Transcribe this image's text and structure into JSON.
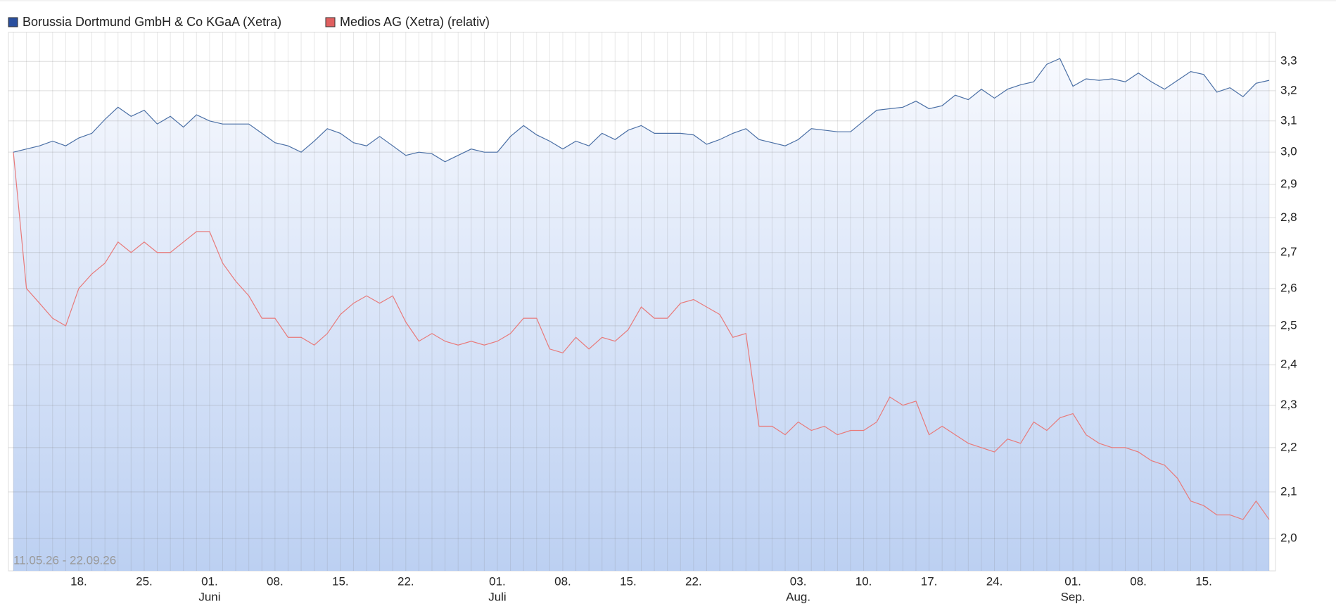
{
  "chart_data": {
    "type": "line",
    "log_scale": true,
    "grid": true,
    "date_range": "11.05.26 - 22.09.26",
    "x": [
      "2026-05-11",
      "2026-05-12",
      "2026-05-13",
      "2026-05-14",
      "2026-05-15",
      "2026-05-18",
      "2026-05-19",
      "2026-05-20",
      "2026-05-21",
      "2026-05-22",
      "2026-05-25",
      "2026-05-26",
      "2026-05-27",
      "2026-05-28",
      "2026-05-29",
      "2026-06-01",
      "2026-06-02",
      "2026-06-03",
      "2026-06-04",
      "2026-06-05",
      "2026-06-08",
      "2026-06-09",
      "2026-06-10",
      "2026-06-11",
      "2026-06-12",
      "2026-06-15",
      "2026-06-16",
      "2026-06-17",
      "2026-06-18",
      "2026-06-19",
      "2026-06-22",
      "2026-06-23",
      "2026-06-24",
      "2026-06-25",
      "2026-06-26",
      "2026-06-29",
      "2026-06-30",
      "2026-07-01",
      "2026-07-02",
      "2026-07-03",
      "2026-07-06",
      "2026-07-07",
      "2026-07-08",
      "2026-07-09",
      "2026-07-10",
      "2026-07-13",
      "2026-07-14",
      "2026-07-15",
      "2026-07-16",
      "2026-07-17",
      "2026-07-20",
      "2026-07-21",
      "2026-07-22",
      "2026-07-23",
      "2026-07-24",
      "2026-07-27",
      "2026-07-28",
      "2026-07-29",
      "2026-07-30",
      "2026-07-31",
      "2026-08-03",
      "2026-08-04",
      "2026-08-05",
      "2026-08-06",
      "2026-08-07",
      "2026-08-10",
      "2026-08-11",
      "2026-08-12",
      "2026-08-13",
      "2026-08-14",
      "2026-08-17",
      "2026-08-18",
      "2026-08-19",
      "2026-08-20",
      "2026-08-21",
      "2026-08-24",
      "2026-08-25",
      "2026-08-26",
      "2026-08-27",
      "2026-08-28",
      "2026-08-31",
      "2026-09-01",
      "2026-09-02",
      "2026-09-03",
      "2026-09-04",
      "2026-09-07",
      "2026-09-08",
      "2026-09-09",
      "2026-09-10",
      "2026-09-11",
      "2026-09-14",
      "2026-09-15",
      "2026-09-16",
      "2026-09-17",
      "2026-09-18",
      "2026-09-21",
      "2026-09-22"
    ],
    "series": [
      {
        "name": "Borussia Dortmund GmbH & Co KGaA (Xetra)",
        "color": "#4a6fa5",
        "legend_color": "#2a4f9e",
        "values": [
          3.0,
          3.01,
          3.02,
          3.035,
          3.02,
          3.045,
          3.06,
          3.105,
          3.145,
          3.115,
          3.135,
          3.09,
          3.115,
          3.08,
          3.12,
          3.1,
          3.09,
          3.09,
          3.09,
          3.06,
          3.03,
          3.02,
          3.0,
          3.035,
          3.075,
          3.06,
          3.03,
          3.02,
          3.05,
          3.02,
          2.99,
          3.0,
          2.995,
          2.97,
          2.99,
          3.01,
          3.0,
          3.0,
          3.05,
          3.085,
          3.055,
          3.035,
          3.01,
          3.035,
          3.02,
          3.06,
          3.04,
          3.07,
          3.085,
          3.06,
          3.06,
          3.06,
          3.055,
          3.025,
          3.04,
          3.06,
          3.075,
          3.04,
          3.03,
          3.02,
          3.04,
          3.075,
          3.07,
          3.065,
          3.065,
          3.1,
          3.135,
          3.14,
          3.145,
          3.165,
          3.14,
          3.15,
          3.185,
          3.17,
          3.205,
          3.175,
          3.205,
          3.22,
          3.23,
          3.29,
          3.31,
          3.215,
          3.24,
          3.235,
          3.24,
          3.23,
          3.26,
          3.23,
          3.205,
          3.235,
          3.265,
          3.255,
          3.195,
          3.21,
          3.18,
          3.225,
          3.235
        ]
      },
      {
        "name": "Medios AG (Xetra) (relativ)",
        "color": "#e87a7a",
        "legend_color": "#e06060",
        "values": [
          3.0,
          2.6,
          2.56,
          2.52,
          2.5,
          2.6,
          2.64,
          2.67,
          2.73,
          2.7,
          2.73,
          2.7,
          2.7,
          2.73,
          2.76,
          2.76,
          2.67,
          2.62,
          2.58,
          2.52,
          2.52,
          2.47,
          2.47,
          2.45,
          2.48,
          2.53,
          2.56,
          2.58,
          2.56,
          2.58,
          2.51,
          2.46,
          2.48,
          2.46,
          2.45,
          2.46,
          2.45,
          2.46,
          2.48,
          2.52,
          2.52,
          2.44,
          2.43,
          2.47,
          2.44,
          2.47,
          2.46,
          2.49,
          2.55,
          2.52,
          2.52,
          2.56,
          2.57,
          2.55,
          2.53,
          2.47,
          2.48,
          2.25,
          2.25,
          2.23,
          2.26,
          2.24,
          2.25,
          2.23,
          2.24,
          2.24,
          2.26,
          2.32,
          2.3,
          2.31,
          2.23,
          2.25,
          2.23,
          2.21,
          2.2,
          2.19,
          2.22,
          2.21,
          2.26,
          2.24,
          2.27,
          2.28,
          2.23,
          2.21,
          2.2,
          2.2,
          2.19,
          2.17,
          2.16,
          2.13,
          2.08,
          2.07,
          2.05,
          2.05,
          2.04,
          2.08,
          2.04
        ]
      }
    ],
    "ylim": [
      1.933,
      3.402
    ],
    "yticks": [
      {
        "value": 2.0,
        "label": "2,0"
      },
      {
        "value": 2.1,
        "label": "2,1"
      },
      {
        "value": 2.2,
        "label": "2,2"
      },
      {
        "value": 2.3,
        "label": "2,3"
      },
      {
        "value": 2.4,
        "label": "2,4"
      },
      {
        "value": 2.5,
        "label": "2,5"
      },
      {
        "value": 2.6,
        "label": "2,6"
      },
      {
        "value": 2.7,
        "label": "2,7"
      },
      {
        "value": 2.8,
        "label": "2,8"
      },
      {
        "value": 2.9,
        "label": "2,9"
      },
      {
        "value": 3.0,
        "label": "3,0"
      },
      {
        "value": 3.1,
        "label": "3,1"
      },
      {
        "value": 3.2,
        "label": "3,2"
      },
      {
        "value": 3.3,
        "label": "3,3"
      }
    ],
    "xticks": [
      {
        "value": "2026-05-18",
        "label": "18."
      },
      {
        "value": "2026-05-25",
        "label": "25."
      },
      {
        "value": "2026-06-01",
        "label": "01."
      },
      {
        "value": "2026-06-08",
        "label": "08."
      },
      {
        "value": "2026-06-15",
        "label": "15."
      },
      {
        "value": "2026-06-22",
        "label": "22."
      },
      {
        "value": "2026-07-01",
        "label": "01."
      },
      {
        "value": "2026-07-08",
        "label": "08."
      },
      {
        "value": "2026-07-15",
        "label": "15."
      },
      {
        "value": "2026-07-22",
        "label": "22."
      },
      {
        "value": "2026-08-03",
        "label": "03."
      },
      {
        "value": "2026-08-10",
        "label": "10."
      },
      {
        "value": "2026-08-17",
        "label": "17."
      },
      {
        "value": "2026-08-24",
        "label": "24."
      },
      {
        "value": "2026-09-01",
        "label": "01."
      },
      {
        "value": "2026-09-08",
        "label": "08."
      },
      {
        "value": "2026-09-15",
        "label": "15."
      }
    ],
    "x_month_labels": [
      {
        "value": "2026-06-01",
        "label": "Juni"
      },
      {
        "value": "2026-07-01",
        "label": "Juli"
      },
      {
        "value": "2026-08-03",
        "label": "Aug."
      },
      {
        "value": "2026-09-01",
        "label": "Sep."
      }
    ]
  }
}
